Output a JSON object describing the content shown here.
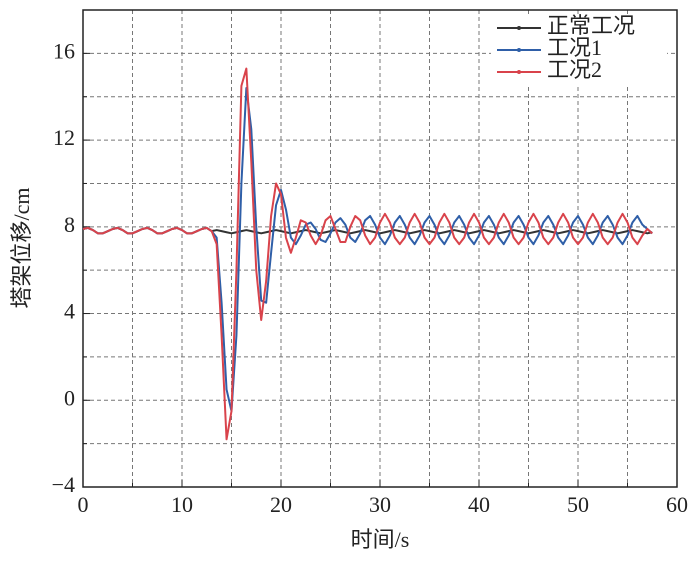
{
  "chart_data": {
    "type": "line",
    "x_label": "时间/s",
    "y_label": "塔架位移/cm",
    "x": [
      0,
      0.5,
      1,
      1.5,
      2,
      2.5,
      3,
      3.5,
      4,
      4.5,
      5,
      5.5,
      6,
      6.5,
      7,
      7.5,
      8,
      8.5,
      9,
      9.5,
      10,
      10.5,
      11,
      11.5,
      12,
      12.5,
      13,
      13.5,
      14,
      14.5,
      15,
      15.5,
      16,
      16.5,
      17,
      17.5,
      18,
      18.5,
      19,
      19.5,
      20,
      20.5,
      21,
      21.5,
      22,
      22.5,
      23,
      23.5,
      24,
      24.5,
      25,
      25.5,
      26,
      26.5,
      27,
      27.5,
      28,
      28.5,
      29,
      29.5,
      30,
      30.5,
      31,
      31.5,
      32,
      32.5,
      33,
      33.5,
      34,
      34.5,
      35,
      35.5,
      36,
      36.5,
      37,
      37.5,
      38,
      38.5,
      39,
      39.5,
      40,
      40.5,
      41,
      41.5,
      42,
      42.5,
      43,
      43.5,
      44,
      44.5,
      45,
      45.5,
      46,
      46.5,
      47,
      47.5,
      48,
      48.5,
      49,
      49.5,
      50,
      50.5,
      51,
      51.5,
      52,
      52.5,
      53,
      53.5,
      54,
      54.5,
      55,
      55.5,
      56,
      56.5,
      57,
      57.5
    ],
    "series": [
      {
        "name": "正常工况",
        "color": "#333333",
        "values": [
          7.9,
          7.95,
          7.85,
          7.7,
          7.7,
          7.8,
          7.9,
          7.95,
          7.85,
          7.7,
          7.7,
          7.8,
          7.9,
          7.95,
          7.85,
          7.7,
          7.7,
          7.8,
          7.9,
          7.95,
          7.85,
          7.7,
          7.7,
          7.8,
          7.9,
          7.95,
          7.8,
          7.85,
          7.8,
          7.75,
          7.7,
          7.75,
          7.8,
          7.85,
          7.8,
          7.75,
          7.7,
          7.75,
          7.8,
          7.85,
          7.8,
          7.75,
          7.7,
          7.75,
          7.8,
          7.85,
          7.8,
          7.75,
          7.7,
          7.75,
          7.8,
          7.85,
          7.8,
          7.75,
          7.7,
          7.75,
          7.8,
          7.85,
          7.8,
          7.75,
          7.7,
          7.75,
          7.8,
          7.85,
          7.8,
          7.75,
          7.7,
          7.75,
          7.8,
          7.85,
          7.8,
          7.75,
          7.7,
          7.75,
          7.8,
          7.85,
          7.8,
          7.75,
          7.7,
          7.75,
          7.8,
          7.85,
          7.8,
          7.75,
          7.7,
          7.75,
          7.8,
          7.85,
          7.8,
          7.75,
          7.7,
          7.75,
          7.8,
          7.85,
          7.8,
          7.75,
          7.7,
          7.75,
          7.8,
          7.85,
          7.8,
          7.75,
          7.7,
          7.75,
          7.8,
          7.85,
          7.8,
          7.75,
          7.7,
          7.75,
          7.8,
          7.85,
          7.8,
          7.75,
          7.7,
          7.75
        ]
      },
      {
        "name": "工况1",
        "color": "#2f5fa8",
        "values": [
          7.9,
          7.95,
          7.85,
          7.7,
          7.7,
          7.8,
          7.9,
          7.95,
          7.85,
          7.7,
          7.7,
          7.8,
          7.9,
          7.95,
          7.85,
          7.7,
          7.7,
          7.8,
          7.9,
          7.95,
          7.85,
          7.7,
          7.7,
          7.8,
          7.9,
          7.95,
          7.8,
          7.5,
          4.5,
          0.5,
          -0.5,
          3,
          10,
          14.4,
          12.5,
          8,
          4.6,
          4.5,
          6.8,
          9,
          9.7,
          8.8,
          7.5,
          7.2,
          7.6,
          8.1,
          8.2,
          7.9,
          7.4,
          7.3,
          7.7,
          8.2,
          8.4,
          8.1,
          7.5,
          7.3,
          7.7,
          8.3,
          8.5,
          8.1,
          7.5,
          7.2,
          7.6,
          8.2,
          8.5,
          8.1,
          7.5,
          7.2,
          7.6,
          8.2,
          8.5,
          8.1,
          7.5,
          7.2,
          7.6,
          8.2,
          8.5,
          8.1,
          7.5,
          7.2,
          7.6,
          8.2,
          8.5,
          8.1,
          7.5,
          7.2,
          7.6,
          8.2,
          8.5,
          8.1,
          7.5,
          7.2,
          7.6,
          8.2,
          8.5,
          8.1,
          7.5,
          7.2,
          7.6,
          8.2,
          8.5,
          8.1,
          7.5,
          7.2,
          7.6,
          8.2,
          8.5,
          8.1,
          7.5,
          7.2,
          7.6,
          8.2,
          8.5,
          8.1,
          7.9,
          7.7
        ]
      },
      {
        "name": "工况2",
        "color": "#d9434b",
        "values": [
          7.9,
          7.95,
          7.85,
          7.7,
          7.7,
          7.8,
          7.9,
          7.95,
          7.85,
          7.7,
          7.7,
          7.8,
          7.9,
          7.95,
          7.85,
          7.7,
          7.7,
          7.8,
          7.9,
          7.95,
          7.85,
          7.7,
          7.7,
          7.8,
          7.9,
          7.95,
          7.8,
          7.2,
          3,
          -1.8,
          -0.5,
          6,
          14.5,
          15.3,
          11,
          6,
          3.7,
          5.5,
          8.5,
          10,
          9.5,
          7.5,
          6.8,
          7.5,
          8.3,
          8.2,
          7.6,
          7.2,
          7.6,
          8.3,
          8.5,
          7.9,
          7.3,
          7.3,
          8.0,
          8.5,
          8.3,
          7.6,
          7.2,
          7.5,
          8.2,
          8.6,
          8.2,
          7.5,
          7.2,
          7.5,
          8.2,
          8.6,
          8.2,
          7.5,
          7.2,
          7.5,
          8.2,
          8.6,
          8.2,
          7.5,
          7.2,
          7.5,
          8.2,
          8.6,
          8.2,
          7.5,
          7.2,
          7.5,
          8.2,
          8.6,
          8.2,
          7.5,
          7.2,
          7.5,
          8.2,
          8.6,
          8.2,
          7.5,
          7.2,
          7.5,
          8.2,
          8.6,
          8.2,
          7.5,
          7.2,
          7.5,
          8.2,
          8.6,
          8.2,
          7.5,
          7.2,
          7.5,
          8.2,
          8.6,
          8.2,
          7.5,
          7.2,
          7.6,
          7.9,
          7.7
        ]
      }
    ],
    "xlim": [
      0,
      60
    ],
    "xticks": [
      0,
      10,
      20,
      30,
      40,
      50,
      60
    ],
    "ylim": [
      -4,
      18
    ],
    "yticks": [
      {
        "value": -4,
        "label": "−4"
      },
      0,
      4,
      8,
      12,
      16
    ],
    "grid": true,
    "legend": "upper right"
  }
}
